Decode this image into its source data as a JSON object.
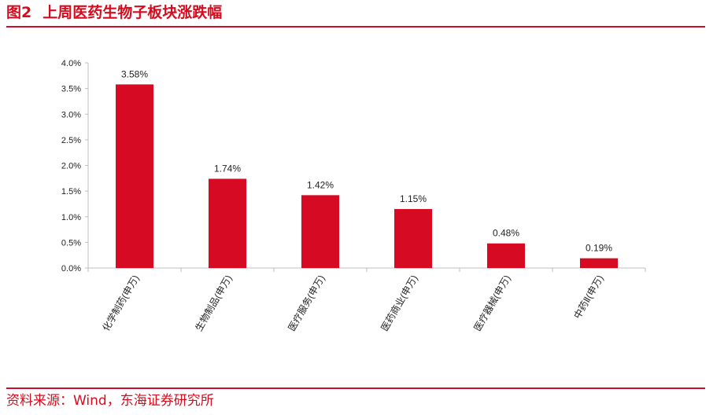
{
  "figure": {
    "number": "图2",
    "title": "上周医药生物子板块涨跌幅",
    "source": "资料来源：Wind，东海证券研究所"
  },
  "colors": {
    "accent": "#d40c1e",
    "bar": "#d60a22",
    "axis": "#bfbfbf",
    "text": "#222222"
  },
  "chart_data": {
    "type": "bar",
    "categories": [
      "化学制药(申万)",
      "生物制品(申万)",
      "医疗服务(申万)",
      "医药商业(申万)",
      "医疗器械(申万)",
      "中药Ⅱ(申万)"
    ],
    "values": [
      3.58,
      1.74,
      1.42,
      1.15,
      0.48,
      0.19
    ],
    "data_labels": [
      "3.58%",
      "1.74%",
      "1.42%",
      "1.15%",
      "0.48%",
      "0.19%"
    ],
    "y_ticks": [
      "0.0%",
      "0.5%",
      "1.0%",
      "1.5%",
      "2.0%",
      "2.5%",
      "3.0%",
      "3.5%",
      "4.0%"
    ],
    "ylim": [
      0,
      4
    ],
    "title": "",
    "xlabel": "",
    "ylabel": "",
    "grid": false,
    "legend": "none"
  }
}
